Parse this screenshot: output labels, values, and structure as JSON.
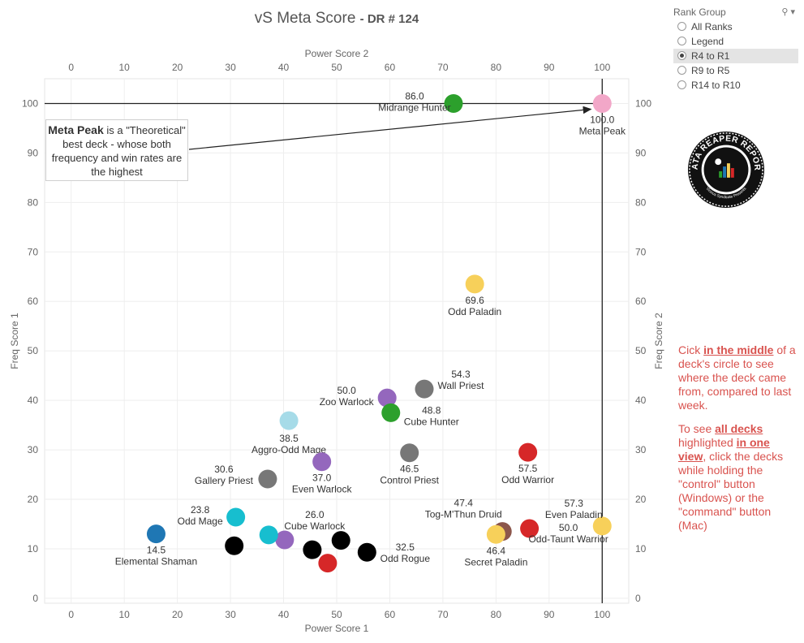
{
  "title": {
    "main": "vS Meta Score",
    "sub": "DR # 124"
  },
  "filter": {
    "title": "Rank Group",
    "options": [
      "All Ranks",
      "Legend",
      "R4 to R1",
      "R9 to R5",
      "R14 to R10"
    ],
    "selected": "R4 to R1"
  },
  "logo": {
    "text_top": "DATA REAPER REPORT",
    "text_bottom": "Vicious Syndicate Presents"
  },
  "callout": {
    "bold": "Meta Peak",
    "text": " is a \"Theoretical\" best deck - whose both frequency and win rates are the highest"
  },
  "instructions": {
    "p1_a": "Cick ",
    "p1_em": "in the middle",
    "p1_b": " of a deck's circle to see where the deck came from, compared to last week.",
    "p2_a": "To see ",
    "p2_em1": "all decks",
    "p2_b": " highlighted ",
    "p2_em2": "in one view",
    "p2_c": ", click the decks while holding the \"control\" button (Windows) or the \"command\" button (Mac)"
  },
  "chart_data": {
    "type": "scatter",
    "title": "vS Meta Score - DR # 124",
    "xlabel": "Power Score 1",
    "xlabel_top": "Power Score 2",
    "ylabel": "Freq Score 1",
    "ylabel_right": "Freq Score 2",
    "xlim": [
      -5,
      105
    ],
    "ylim": [
      -1,
      105
    ],
    "xticks": [
      0,
      10,
      20,
      30,
      40,
      50,
      60,
      70,
      80,
      90,
      100
    ],
    "yticks": [
      0,
      10,
      20,
      30,
      40,
      50,
      60,
      70,
      80,
      90,
      100
    ],
    "grid": true,
    "reference_lines": {
      "x": 100,
      "y": 100
    },
    "points": [
      {
        "name": "Meta Peak",
        "score": "100.0",
        "x": 100,
        "y": 100,
        "color": "#f2a7c8",
        "label": true
      },
      {
        "name": "Midrange Hunter",
        "score": "86.0",
        "x": 72,
        "y": 100,
        "color": "#2ca02c",
        "label": true
      },
      {
        "name": "Odd Paladin",
        "score": "69.6",
        "x": 76,
        "y": 63.5,
        "color": "#f7d05a",
        "label": true
      },
      {
        "name": "Wall Priest",
        "score": "54.3",
        "x": 66.5,
        "y": 42.3,
        "color": "#777777",
        "label": true
      },
      {
        "name": "Zoo Warlock",
        "score": "50.0",
        "x": 59.5,
        "y": 40.5,
        "color": "#9467bd",
        "label": true
      },
      {
        "name": "Cube Hunter",
        "score": "48.8",
        "x": 60.2,
        "y": 37.5,
        "color": "#2ca02c",
        "label": true
      },
      {
        "name": "Aggro-Odd Mage",
        "score": "38.5",
        "x": 41,
        "y": 35.9,
        "color": "#a6dbe8",
        "label": true
      },
      {
        "name": "Control Priest",
        "score": "46.5",
        "x": 63.7,
        "y": 29.4,
        "color": "#777777",
        "label": true
      },
      {
        "name": "Odd Warrior",
        "score": "57.5",
        "x": 86,
        "y": 29.5,
        "color": "#d62728",
        "label": true
      },
      {
        "name": "Even Warlock",
        "score": "37.0",
        "x": 47.2,
        "y": 27.6,
        "color": "#9467bd",
        "label": true
      },
      {
        "name": "Gallery Priest",
        "score": "30.6",
        "x": 37,
        "y": 24.1,
        "color": "#777777",
        "label": true
      },
      {
        "name": "Odd Mage",
        "score": "23.8",
        "x": 31,
        "y": 16.4,
        "color": "#17becf",
        "label": true
      },
      {
        "name": "Cube Warlock",
        "score": "26.0",
        "x": 40.2,
        "y": 11.8,
        "color": "#9467bd",
        "label": true
      },
      {
        "name": "Tog-M'Thun Druid",
        "score": "47.4",
        "x": 81.2,
        "y": 13.5,
        "color": "#8c564b",
        "label": true
      },
      {
        "name": "Even Paladin",
        "score": "57.3",
        "x": 100,
        "y": 14.6,
        "color": "#f7d05a",
        "label": true
      },
      {
        "name": "Secret Paladin",
        "score": "46.4",
        "x": 80,
        "y": 12.9,
        "color": "#f7d05a",
        "label": true
      },
      {
        "name": "Odd-Taunt Warrior",
        "score": "50.0",
        "x": 86.3,
        "y": 14.1,
        "color": "#d62728",
        "label": true
      },
      {
        "name": "Elemental Shaman",
        "score": "14.5",
        "x": 16,
        "y": 13,
        "color": "#1f77b4",
        "label": true
      },
      {
        "name": "Odd Rogue",
        "score": "32.5",
        "x": 55.7,
        "y": 9.3,
        "color": "#000000",
        "label": true
      },
      {
        "name": "",
        "score": "",
        "x": 37.2,
        "y": 12.8,
        "color": "#17becf",
        "label": false
      },
      {
        "name": "",
        "score": "",
        "x": 30.7,
        "y": 10.6,
        "color": "#000000",
        "label": false
      },
      {
        "name": "",
        "score": "",
        "x": 45.4,
        "y": 9.8,
        "color": "#000000",
        "label": false
      },
      {
        "name": "",
        "score": "",
        "x": 50.8,
        "y": 11.7,
        "color": "#000000",
        "label": false
      },
      {
        "name": "",
        "score": "",
        "x": 48.3,
        "y": 7.1,
        "color": "#d62728",
        "label": false
      }
    ]
  }
}
